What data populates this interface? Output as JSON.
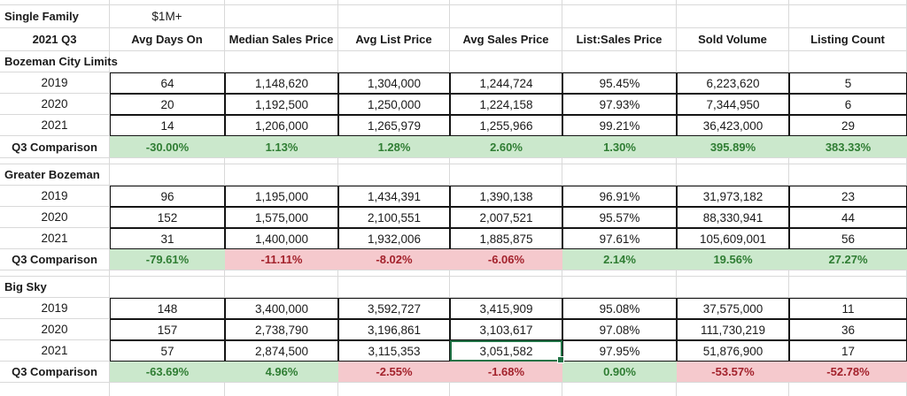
{
  "sheet": {
    "title": "Single Family",
    "filter": "$1M+",
    "period": "2021 Q3",
    "columns": [
      "Avg Days On",
      "Median Sales Price",
      "Avg List Price",
      "Avg Sales Price",
      "List:Sales Price",
      "Sold Volume",
      "Listing Count"
    ],
    "sections": [
      {
        "name": "Bozeman City Limits",
        "rows": [
          {
            "label": "2019",
            "values": [
              "64",
              "1,148,620",
              "1,304,000",
              "1,244,724",
              "95.45%",
              "6,223,620",
              "5"
            ]
          },
          {
            "label": "2020",
            "values": [
              "20",
              "1,192,500",
              "1,250,000",
              "1,224,158",
              "97.93%",
              "7,344,950",
              "6"
            ]
          },
          {
            "label": "2021",
            "values": [
              "14",
              "1,206,000",
              "1,265,979",
              "1,255,966",
              "99.21%",
              "36,423,000",
              "29"
            ]
          }
        ],
        "comparison": {
          "label": "Q3 Comparison",
          "values": [
            "-30.00%",
            "1.13%",
            "1.28%",
            "2.60%",
            "1.30%",
            "395.89%",
            "383.33%"
          ],
          "states": [
            "good",
            "good",
            "good",
            "good",
            "good",
            "good",
            "good"
          ]
        }
      },
      {
        "name": "Greater Bozeman",
        "rows": [
          {
            "label": "2019",
            "values": [
              "96",
              "1,195,000",
              "1,434,391",
              "1,390,138",
              "96.91%",
              "31,973,182",
              "23"
            ]
          },
          {
            "label": "2020",
            "values": [
              "152",
              "1,575,000",
              "2,100,551",
              "2,007,521",
              "95.57%",
              "88,330,941",
              "44"
            ]
          },
          {
            "label": "2021",
            "values": [
              "31",
              "1,400,000",
              "1,932,006",
              "1,885,875",
              "97.61%",
              "105,609,001",
              "56"
            ]
          }
        ],
        "comparison": {
          "label": "Q3 Comparison",
          "values": [
            "-79.61%",
            "-11.11%",
            "-8.02%",
            "-6.06%",
            "2.14%",
            "19.56%",
            "27.27%"
          ],
          "states": [
            "good",
            "bad",
            "bad",
            "bad",
            "good",
            "good",
            "good"
          ]
        }
      },
      {
        "name": "Big Sky",
        "rows": [
          {
            "label": "2019",
            "values": [
              "148",
              "3,400,000",
              "3,592,727",
              "3,415,909",
              "95.08%",
              "37,575,000",
              "11"
            ]
          },
          {
            "label": "2020",
            "values": [
              "157",
              "2,738,790",
              "3,196,861",
              "3,103,617",
              "97.08%",
              "111,730,219",
              "36"
            ]
          },
          {
            "label": "2021",
            "values": [
              "57",
              "2,874,500",
              "3,115,353",
              "3,051,582",
              "97.95%",
              "51,876,900",
              "17"
            ]
          }
        ],
        "comparison": {
          "label": "Q3 Comparison",
          "values": [
            "-63.69%",
            "4.96%",
            "-2.55%",
            "-1.68%",
            "0.90%",
            "-53.57%",
            "-52.78%"
          ],
          "states": [
            "good",
            "good",
            "bad",
            "bad",
            "good",
            "bad",
            "bad"
          ]
        }
      }
    ],
    "selection": {
      "section_index": 2,
      "row_index": 2,
      "value_index": 3
    },
    "colors": {
      "good_bg": "#CBE8CC",
      "good_text": "#2F7D33",
      "bad_bg": "#F5C9CD",
      "bad_text": "#A3222C",
      "selection_border": "#217346",
      "gridline": "#D9D9D9",
      "data_border": "#151515"
    }
  }
}
